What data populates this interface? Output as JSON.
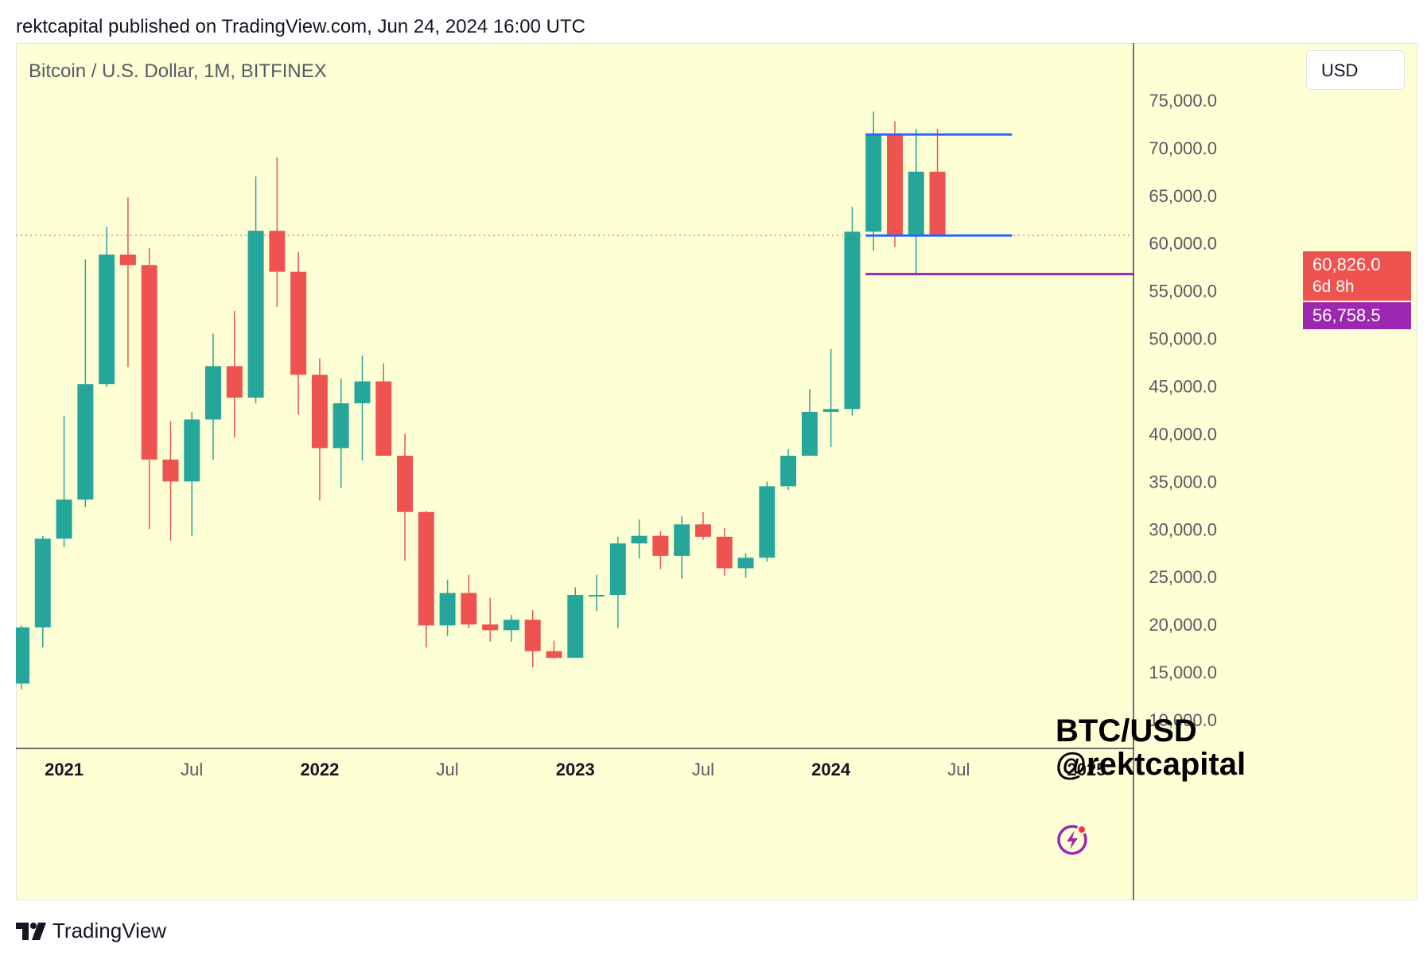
{
  "header": {
    "published_line": "rektcapital published on TradingView.com, Jun 24, 2024 16:00 UTC"
  },
  "toolbar": {
    "symbol_title": "Bitcoin / U.S. Dollar, 1M, BITFINEX",
    "currency_label": "USD"
  },
  "watermark": {
    "line1": "BTC/USD",
    "line2": "@rektcapital"
  },
  "price_badges": {
    "last_price": "60,826.0",
    "countdown": "6d 8h",
    "level": "56,758.5"
  },
  "footer": {
    "brand": "TradingView",
    "logo_icon": "tradingview-logo-icon"
  },
  "colors": {
    "background": "#ffffd6",
    "up": "#26a69a",
    "down": "#ef5350",
    "range_lines": "#2962ff",
    "support_line": "#9c27b0",
    "last_price_line": "#ef5350"
  },
  "chart_data": {
    "type": "candlestick",
    "interval": "1M",
    "title": "Bitcoin / U.S. Dollar, 1M, BITFINEX",
    "ylim": [
      7000,
      81000
    ],
    "y_ticks": [
      10000,
      15000,
      20000,
      25000,
      30000,
      35000,
      40000,
      45000,
      50000,
      55000,
      60000,
      65000,
      70000,
      75000
    ],
    "y_tick_labels": [
      "10,000.0",
      "15,000.0",
      "20,000.0",
      "25,000.0",
      "30,000.0",
      "35,000.0",
      "40,000.0",
      "45,000.0",
      "50,000.0",
      "55,000.0",
      "60,000.0",
      "65,000.0",
      "70,000.0",
      "75,000.0"
    ],
    "x_ticks": [
      {
        "index": 2,
        "label": "2021",
        "bold": true
      },
      {
        "index": 8,
        "label": "Jul",
        "bold": false
      },
      {
        "index": 14,
        "label": "2022",
        "bold": true
      },
      {
        "index": 20,
        "label": "Jul",
        "bold": false
      },
      {
        "index": 26,
        "label": "2023",
        "bold": true
      },
      {
        "index": 32,
        "label": "Jul",
        "bold": false
      },
      {
        "index": 38,
        "label": "2024",
        "bold": true
      },
      {
        "index": 44,
        "label": "Jul",
        "bold": false
      },
      {
        "index": 50,
        "label": "2025",
        "bold": true
      }
    ],
    "candles": [
      {
        "t": "2020-11",
        "o": 13800,
        "h": 19900,
        "l": 13200,
        "c": 19700
      },
      {
        "t": "2020-12",
        "o": 19700,
        "h": 29300,
        "l": 17600,
        "c": 29000
      },
      {
        "t": "2021-01",
        "o": 29000,
        "h": 41900,
        "l": 28100,
        "c": 33100
      },
      {
        "t": "2021-02",
        "o": 33100,
        "h": 58300,
        "l": 32300,
        "c": 45200
      },
      {
        "t": "2021-03",
        "o": 45200,
        "h": 61700,
        "l": 44900,
        "c": 58800
      },
      {
        "t": "2021-04",
        "o": 58800,
        "h": 64800,
        "l": 47000,
        "c": 57700
      },
      {
        "t": "2021-05",
        "o": 57700,
        "h": 59500,
        "l": 30000,
        "c": 37300
      },
      {
        "t": "2021-06",
        "o": 37300,
        "h": 41300,
        "l": 28800,
        "c": 35000
      },
      {
        "t": "2021-07",
        "o": 35000,
        "h": 42300,
        "l": 29300,
        "c": 41500
      },
      {
        "t": "2021-08",
        "o": 41500,
        "h": 50500,
        "l": 37300,
        "c": 47100
      },
      {
        "t": "2021-09",
        "o": 47100,
        "h": 52900,
        "l": 39600,
        "c": 43800
      },
      {
        "t": "2021-10",
        "o": 43800,
        "h": 67000,
        "l": 43200,
        "c": 61300
      },
      {
        "t": "2021-11",
        "o": 61300,
        "h": 69000,
        "l": 53300,
        "c": 57000
      },
      {
        "t": "2021-12",
        "o": 57000,
        "h": 59100,
        "l": 42000,
        "c": 46200
      },
      {
        "t": "2022-01",
        "o": 46200,
        "h": 47900,
        "l": 33000,
        "c": 38500
      },
      {
        "t": "2022-02",
        "o": 38500,
        "h": 45800,
        "l": 34300,
        "c": 43200
      },
      {
        "t": "2022-03",
        "o": 43200,
        "h": 48200,
        "l": 37200,
        "c": 45500
      },
      {
        "t": "2022-04",
        "o": 45500,
        "h": 47400,
        "l": 37700,
        "c": 37700
      },
      {
        "t": "2022-05",
        "o": 37700,
        "h": 40000,
        "l": 26700,
        "c": 31800
      },
      {
        "t": "2022-06",
        "o": 31800,
        "h": 31900,
        "l": 17600,
        "c": 19900
      },
      {
        "t": "2022-07",
        "o": 19900,
        "h": 24700,
        "l": 18800,
        "c": 23300
      },
      {
        "t": "2022-08",
        "o": 23300,
        "h": 25200,
        "l": 19600,
        "c": 20000
      },
      {
        "t": "2022-09",
        "o": 20000,
        "h": 22800,
        "l": 18200,
        "c": 19400
      },
      {
        "t": "2022-10",
        "o": 19400,
        "h": 21000,
        "l": 18200,
        "c": 20500
      },
      {
        "t": "2022-11",
        "o": 20500,
        "h": 21500,
        "l": 15500,
        "c": 17200
      },
      {
        "t": "2022-12",
        "o": 17200,
        "h": 18300,
        "l": 16400,
        "c": 16500
      },
      {
        "t": "2023-01",
        "o": 16500,
        "h": 23900,
        "l": 16500,
        "c": 23100
      },
      {
        "t": "2023-02",
        "o": 23100,
        "h": 25200,
        "l": 21400,
        "c": 23100
      },
      {
        "t": "2023-03",
        "o": 23100,
        "h": 29200,
        "l": 19600,
        "c": 28500
      },
      {
        "t": "2023-04",
        "o": 28500,
        "h": 31000,
        "l": 26900,
        "c": 29300
      },
      {
        "t": "2023-05",
        "o": 29300,
        "h": 29800,
        "l": 25800,
        "c": 27200
      },
      {
        "t": "2023-06",
        "o": 27200,
        "h": 31400,
        "l": 24800,
        "c": 30500
      },
      {
        "t": "2023-07",
        "o": 30500,
        "h": 31800,
        "l": 28900,
        "c": 29200
      },
      {
        "t": "2023-08",
        "o": 29200,
        "h": 30100,
        "l": 25100,
        "c": 25900
      },
      {
        "t": "2023-09",
        "o": 25900,
        "h": 27500,
        "l": 24900,
        "c": 27000
      },
      {
        "t": "2023-10",
        "o": 27000,
        "h": 35000,
        "l": 26600,
        "c": 34500
      },
      {
        "t": "2023-11",
        "o": 34500,
        "h": 38400,
        "l": 34100,
        "c": 37700
      },
      {
        "t": "2023-12",
        "o": 37700,
        "h": 44700,
        "l": 37700,
        "c": 42300
      },
      {
        "t": "2024-01",
        "o": 42300,
        "h": 48900,
        "l": 38600,
        "c": 42600
      },
      {
        "t": "2024-02",
        "o": 42600,
        "h": 63800,
        "l": 41900,
        "c": 61200
      },
      {
        "t": "2024-03",
        "o": 61200,
        "h": 73800,
        "l": 59200,
        "c": 71400
      },
      {
        "t": "2024-04",
        "o": 71400,
        "h": 72800,
        "l": 59600,
        "c": 60700
      },
      {
        "t": "2024-05",
        "o": 60700,
        "h": 72000,
        "l": 56600,
        "c": 67500
      },
      {
        "t": "2024-06",
        "o": 67500,
        "h": 72000,
        "l": 60800,
        "c": 60826
      }
    ],
    "annotations": {
      "range_high": {
        "value": 71400,
        "from_index": 40,
        "to_index": 46.5,
        "color": "#2962ff"
      },
      "range_low": {
        "value": 60800,
        "from_index": 40,
        "to_index": 46.5,
        "color": "#2962ff"
      },
      "support": {
        "value": 56758.5,
        "from_index": 40,
        "color": "#9c27b0"
      },
      "last_price": {
        "value": 60826,
        "color": "#ef5350"
      }
    },
    "grid": false,
    "legend": "none"
  }
}
